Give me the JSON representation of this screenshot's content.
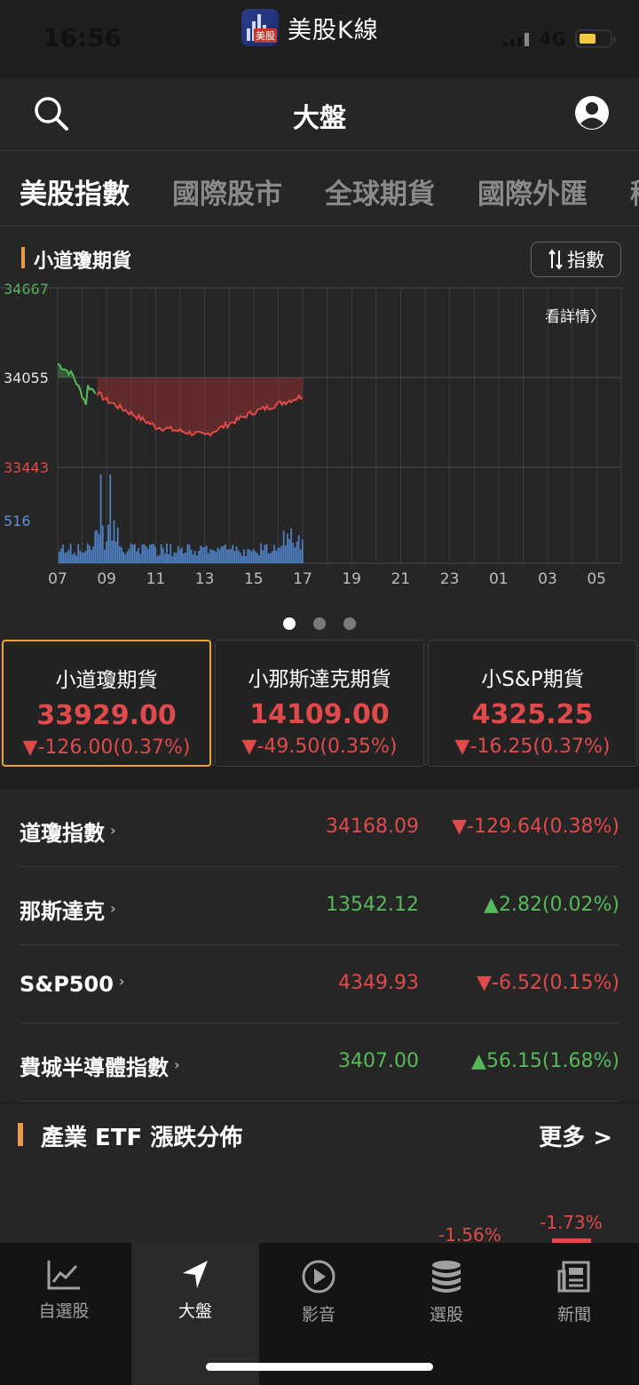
{
  "status": {
    "time": "16:56",
    "network": "4G"
  },
  "app": {
    "name": "美股K線",
    "logo_label": "美股"
  },
  "header": {
    "title": "大盤"
  },
  "tabs": [
    "美股指數",
    "國際股市",
    "全球期貨",
    "國際外匯",
    "稀"
  ],
  "chart": {
    "title": "小道瓊期貨",
    "switch_label": "指數",
    "detail_link": "看詳情",
    "y_high": "34667",
    "y_mid": "34055",
    "y_low": "33443",
    "vol_max": "516",
    "x_labels": [
      "07",
      "09",
      "11",
      "13",
      "15",
      "17",
      "19",
      "21",
      "23",
      "01",
      "03",
      "05"
    ]
  },
  "chart_data": {
    "type": "line",
    "x": [
      "07",
      "09",
      "11",
      "13",
      "15",
      "17"
    ],
    "values": [
      34150,
      33900,
      33720,
      33660,
      33820,
      33929
    ],
    "reference": 34055,
    "ylim": [
      33443,
      34667
    ],
    "volume_max": 516
  },
  "futures": [
    {
      "name": "小道瓊期貨",
      "price": "33929.00",
      "change": "▼-126.00(0.37%)"
    },
    {
      "name": "小那斯達克期貨",
      "price": "14109.00",
      "change": "▼-49.50(0.35%)"
    },
    {
      "name": "小S&P期貨",
      "price": "4325.25",
      "change": "▼-16.25(0.37%)"
    }
  ],
  "indices": [
    {
      "name": "道瓊指數",
      "value": "34168.09",
      "change": "▼-129.64(0.38%)",
      "dir": "down"
    },
    {
      "name": "那斯達克",
      "value": "13542.12",
      "change": "▲2.82(0.02%)",
      "dir": "up"
    },
    {
      "name": "S&P500",
      "value": "4349.93",
      "change": "▼-6.52(0.15%)",
      "dir": "down"
    },
    {
      "name": "費城半導體指數",
      "value": "3407.00",
      "change": "▲56.15(1.68%)",
      "dir": "up"
    }
  ],
  "etf": {
    "title": "產業 ETF 漲跌分佈",
    "more": "更多 >",
    "values": [
      "-1.56%",
      "-1.73%"
    ]
  },
  "tabbar": [
    "自選股",
    "大盤",
    "影音",
    "選股",
    "新聞"
  ],
  "colors": {
    "up": "#56b95a",
    "down": "#e04a4a",
    "accent": "#e8a33b"
  }
}
